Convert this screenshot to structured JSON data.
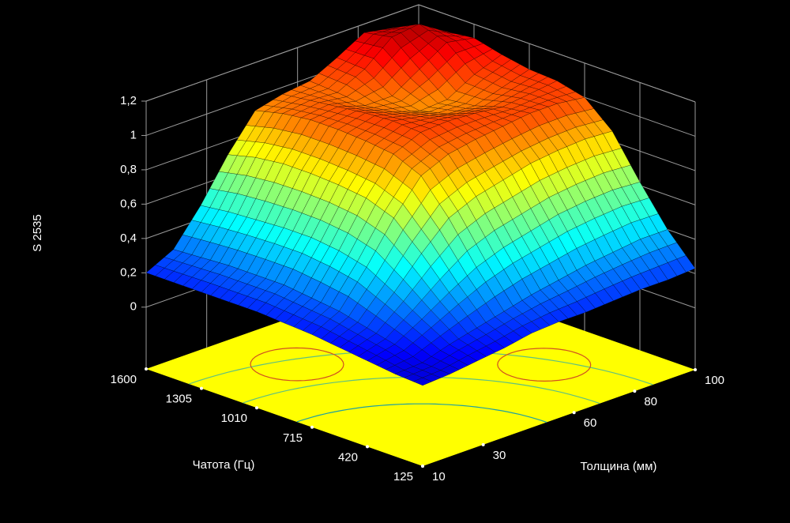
{
  "chart_data": {
    "type": "surface",
    "zlabel": "S 2535",
    "ylabel": "Чатота (Гц)",
    "xlabel": "Толщина (мм)",
    "colormap": "jet",
    "floor_color": "#ffff00",
    "x": [
      10,
      19,
      28,
      37,
      46,
      55,
      64,
      73,
      82,
      91,
      100
    ],
    "y": [
      125,
      272.5,
      420,
      567.5,
      715,
      862.5,
      1010,
      1157.5,
      1305,
      1452.5,
      1600
    ],
    "z": [
      [
        0.11,
        0.12,
        0.14,
        0.16,
        0.19,
        0.2,
        0.2,
        0.21,
        0.22,
        0.22,
        0.23
      ],
      [
        0.12,
        0.13,
        0.18,
        0.22,
        0.26,
        0.3,
        0.33,
        0.36,
        0.38,
        0.4,
        0.4
      ],
      [
        0.14,
        0.18,
        0.27,
        0.37,
        0.46,
        0.52,
        0.56,
        0.6,
        0.62,
        0.63,
        0.62
      ],
      [
        0.16,
        0.22,
        0.37,
        0.54,
        0.69,
        0.76,
        0.8,
        0.84,
        0.86,
        0.87,
        0.86
      ],
      [
        0.18,
        0.26,
        0.46,
        0.69,
        0.88,
        0.95,
        0.98,
        1.0,
        1.02,
        1.02,
        1.0
      ],
      [
        0.19,
        0.28,
        0.5,
        0.75,
        0.95,
        1.02,
        1.03,
        1.02,
        1.0,
        1.02,
        1.04
      ],
      [
        0.2,
        0.3,
        0.52,
        0.77,
        0.97,
        1.03,
        1.0,
        0.96,
        0.95,
        1.0,
        1.05
      ],
      [
        0.2,
        0.3,
        0.52,
        0.78,
        0.98,
        1.02,
        0.97,
        0.92,
        0.93,
        1.02,
        1.08
      ],
      [
        0.2,
        0.3,
        0.51,
        0.78,
        0.98,
        1.0,
        0.95,
        0.95,
        1.05,
        1.15,
        1.12
      ],
      [
        0.2,
        0.29,
        0.5,
        0.76,
        0.96,
        0.98,
        0.97,
        1.05,
        1.18,
        1.2,
        1.1
      ],
      [
        0.2,
        0.28,
        0.48,
        0.72,
        0.92,
        0.96,
        0.98,
        1.06,
        1.15,
        1.12,
        1.05
      ]
    ],
    "xlim": [
      10,
      100
    ],
    "ylim": [
      125,
      1600
    ],
    "zlim": [
      -0.36,
      1.2
    ],
    "xticks": [
      10,
      30,
      60,
      80,
      100
    ],
    "yticks": [
      125,
      420,
      715,
      1010,
      1305,
      1600
    ],
    "zticks": [
      0,
      {
        "value": 0.2,
        "label": "0,2"
      },
      {
        "value": 0.4,
        "label": "0,4"
      },
      {
        "value": 0.6,
        "label": "0,6"
      },
      {
        "value": 0.8,
        "label": "0,8"
      },
      1,
      {
        "value": 1.2,
        "label": "1,2"
      }
    ]
  }
}
